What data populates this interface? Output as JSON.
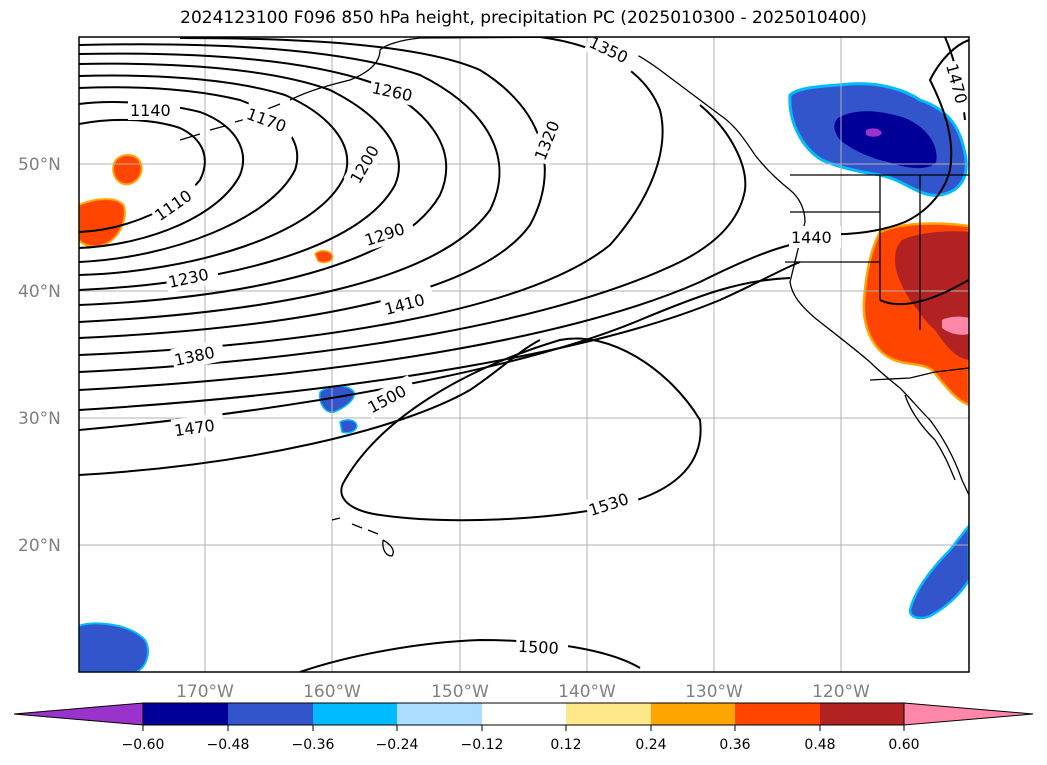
{
  "title": "2024123100 F096 850 hPa height, precipitation PC (2025010300 - 2025010400)",
  "map": {
    "lon_range": [
      180,
      110
    ],
    "lat_range": [
      10,
      60
    ],
    "lat_ticks": [
      {
        "value": 20,
        "label": "20°N"
      },
      {
        "value": 30,
        "label": "30°N"
      },
      {
        "value": 40,
        "label": "40°N"
      },
      {
        "value": 50,
        "label": "50°N"
      }
    ],
    "lon_ticks": [
      {
        "value": 170,
        "label": "170°W"
      },
      {
        "value": 160,
        "label": "160°W"
      },
      {
        "value": 150,
        "label": "150°W"
      },
      {
        "value": 140,
        "label": "140°W"
      },
      {
        "value": 130,
        "label": "130°W"
      },
      {
        "value": 120,
        "label": "120°W"
      }
    ],
    "grid": true
  },
  "contour_labels": [
    "1140",
    "1170",
    "1260",
    "1350",
    "1320",
    "1200",
    "1110",
    "1290",
    "1230",
    "1410",
    "1380",
    "1500",
    "1470",
    "1440",
    "1470",
    "1530",
    "1500"
  ],
  "colorbar": {
    "colors": [
      "#9933cc",
      "#000099",
      "#3355cc",
      "#00bbff",
      "#aaddff",
      "#ffffff",
      "#ffe88a",
      "#ffa500",
      "#ff4500",
      "#b22222",
      "#ff88aa"
    ],
    "labels": [
      "−0.60",
      "−0.48",
      "−0.36",
      "−0.24",
      "−0.12",
      "0.12",
      "0.24",
      "0.36",
      "0.48",
      "0.60"
    ],
    "extend": "both"
  },
  "colors": {
    "frame": "#000000",
    "gridline": "#b0b0b0",
    "tick_label": "#808080"
  }
}
